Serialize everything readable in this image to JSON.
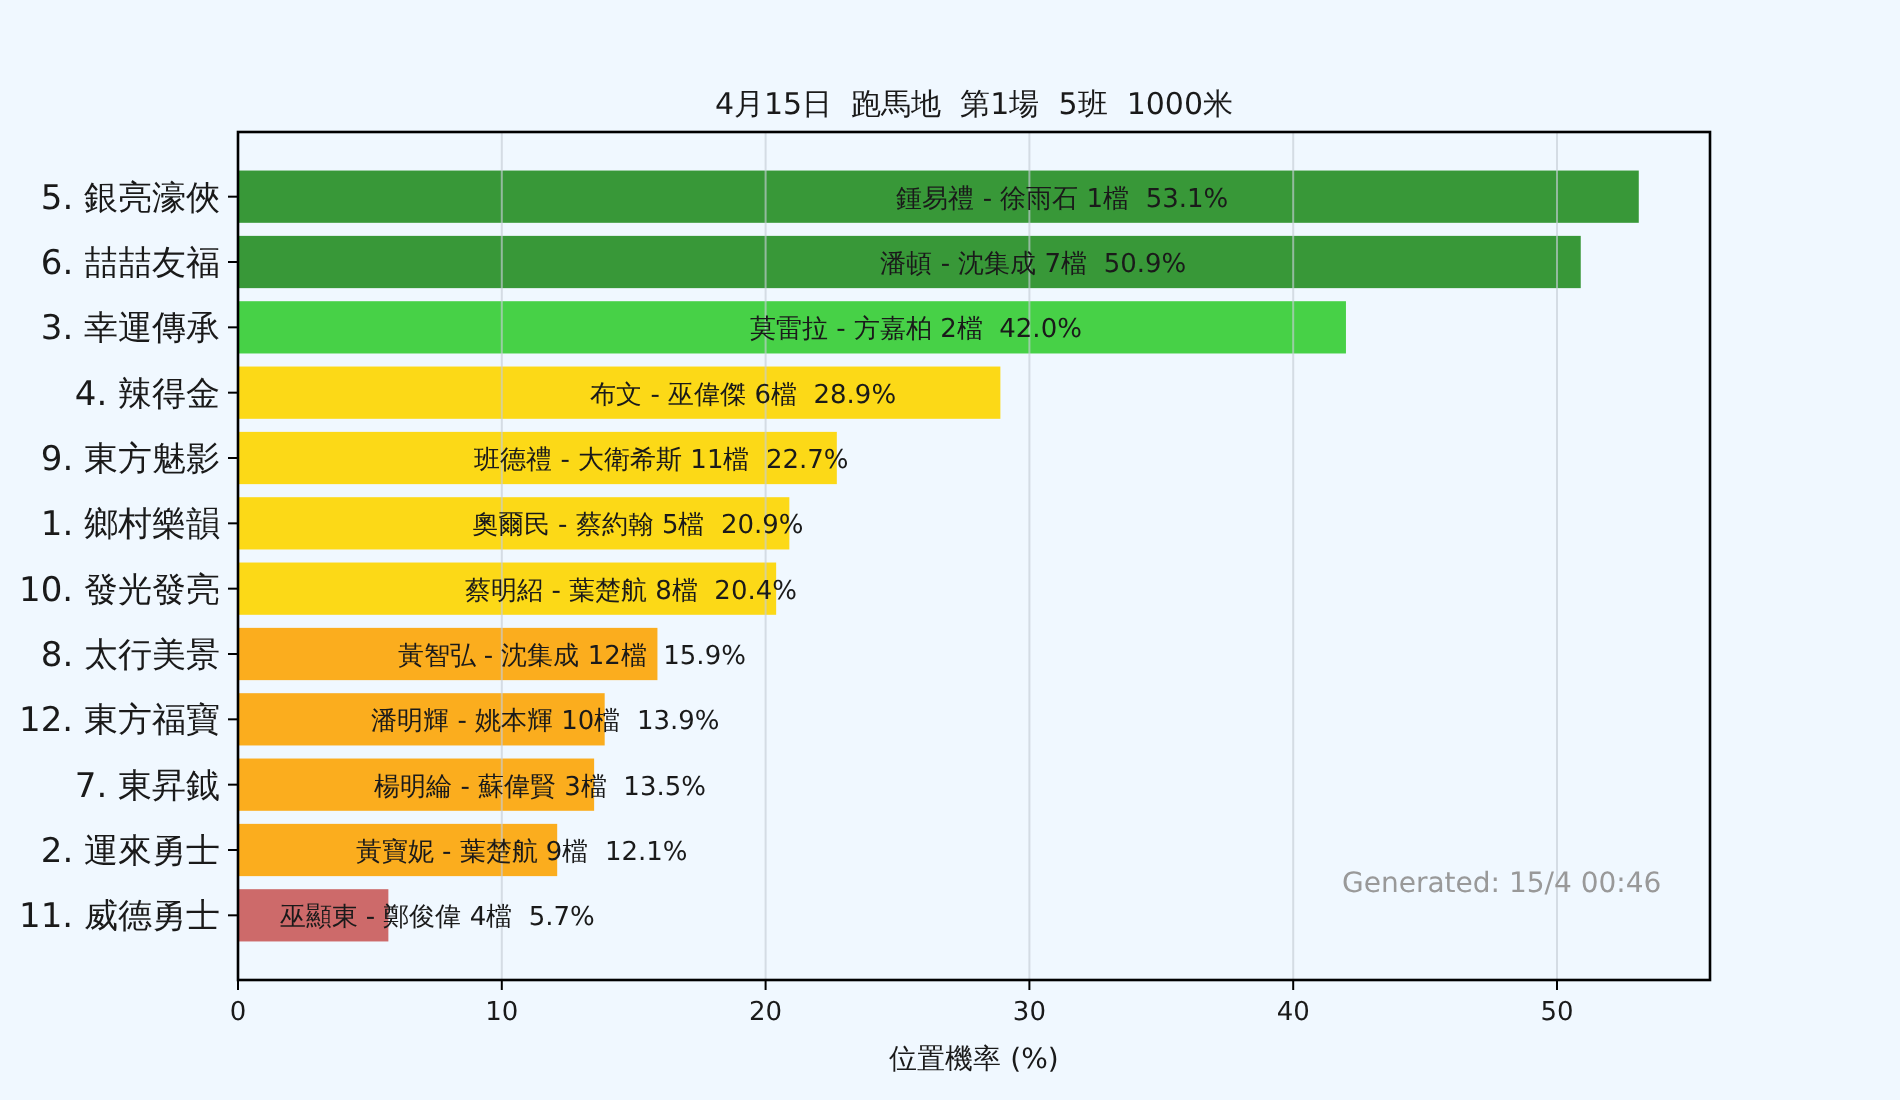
{
  "chart_data": {
    "type": "bar",
    "orientation": "horizontal",
    "title": "4月15日  跑馬地  第1場  5班  1000米",
    "xlabel": "位置機率 (%)",
    "categories": [
      "5. 銀亮濠俠",
      "6. 喆喆友福",
      "3. 幸運傳承",
      "4. 辣得金",
      "9. 東方魅影",
      "1. 鄉村樂韻",
      "10. 發光發亮",
      "8. 太行美景",
      "12. 東方福寶",
      "7. 東昇鉞",
      "2. 運來勇士",
      "11. 威德勇士"
    ],
    "values": [
      53.1,
      50.9,
      42.0,
      28.9,
      22.7,
      20.9,
      20.4,
      15.9,
      13.9,
      13.5,
      12.1,
      5.7
    ],
    "colors": [
      "#389838",
      "#389838",
      "#47d147",
      "#fcd917",
      "#fcd917",
      "#fcd917",
      "#fcd917",
      "#fbad1e",
      "#fbad1e",
      "#fbad1e",
      "#fbad1e",
      "#cd6a6a"
    ],
    "value_labels": [
      "鍾易禮 - 徐雨石 1檔  53.1%",
      "潘頓 - 沈集成 7檔  50.9%",
      "莫雷拉 - 方嘉柏 2檔  42.0%",
      "布文 - 巫偉傑 6檔  28.9%",
      "班德禮 - 大衛希斯 11檔  22.7%",
      "奧爾民 - 蔡約翰 5檔  20.9%",
      "蔡明紹 - 葉楚航 8檔  20.4%",
      "黃智弘 - 沈集成 12檔  15.9%",
      "潘明輝 - 姚本輝 10檔  13.9%",
      "楊明綸 - 蘇偉賢 3檔  13.5%",
      "黃寶妮 - 葉楚航 9檔  12.1%",
      "巫顯東 - 鄭俊偉 4檔  5.7%"
    ],
    "xlim": [
      0,
      55.8
    ],
    "xticks": [
      0,
      10,
      20,
      30,
      40,
      50
    ],
    "grid": "x",
    "annotations": [
      "Generated: 15/4 00:46"
    ]
  }
}
